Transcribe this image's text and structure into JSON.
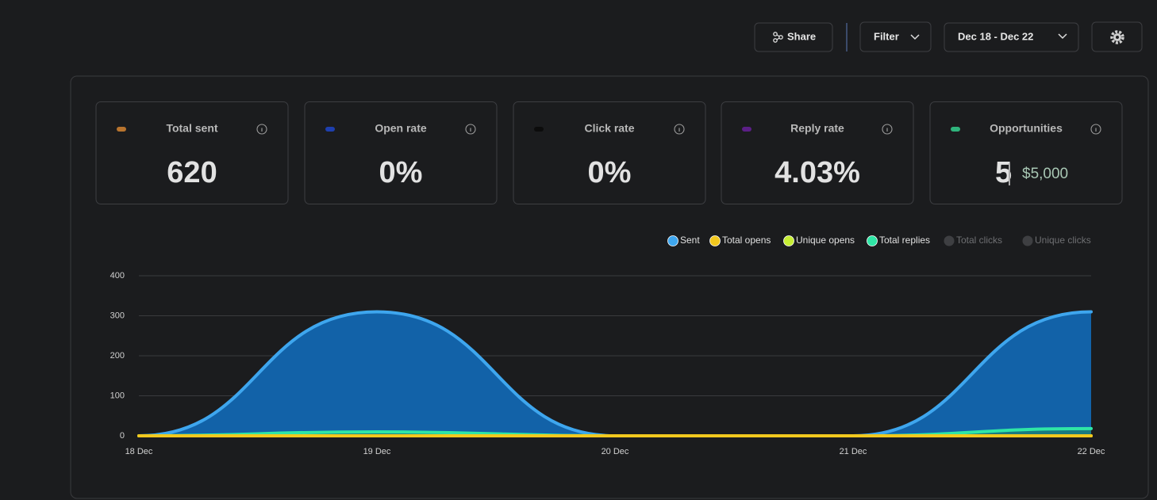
{
  "toolbar": {
    "share": "Share",
    "filter": "Filter",
    "date_range": "Dec 18 - Dec 22"
  },
  "stats": [
    {
      "label": "Total sent",
      "value": "620",
      "color": "#b8742e"
    },
    {
      "label": "Open rate",
      "value": "0%",
      "color": "#1e3fae"
    },
    {
      "label": "Click rate",
      "value": "0%",
      "color": "#0c0c0c"
    },
    {
      "label": "Reply rate",
      "value": "4.03%",
      "color": "#5b1f86"
    },
    {
      "label": "Opportunities",
      "value": "5",
      "amount": "$5,000",
      "color": "#2fb47c"
    }
  ],
  "chart_data": {
    "type": "area",
    "categories": [
      "18 Dec",
      "19 Dec",
      "20 Dec",
      "21 Dec",
      "22 Dec"
    ],
    "series": [
      {
        "name": "Sent",
        "color": "#3ea6ee",
        "fill": "#1262a8",
        "values": [
          0,
          310,
          0,
          0,
          310
        ]
      },
      {
        "name": "Total opens",
        "color": "#f2c81e",
        "values": [
          0,
          0,
          0,
          0,
          0
        ]
      },
      {
        "name": "Unique opens",
        "color": "#c6ee34",
        "values": [
          0,
          0,
          0,
          0,
          0
        ]
      },
      {
        "name": "Total replies",
        "color": "#2fe6a6",
        "fill": "#1f8a66",
        "values": [
          0,
          10,
          0,
          0,
          18
        ]
      },
      {
        "name": "Total clicks",
        "color": "#3e3f42",
        "hidden": true,
        "values": [
          0,
          0,
          0,
          0,
          0
        ]
      },
      {
        "name": "Unique clicks",
        "color": "#3e3f42",
        "hidden": true,
        "values": [
          0,
          0,
          0,
          0,
          0
        ]
      }
    ],
    "ylim": [
      0,
      400
    ],
    "yticks": [
      0,
      100,
      200,
      300,
      400
    ],
    "grid": true
  }
}
